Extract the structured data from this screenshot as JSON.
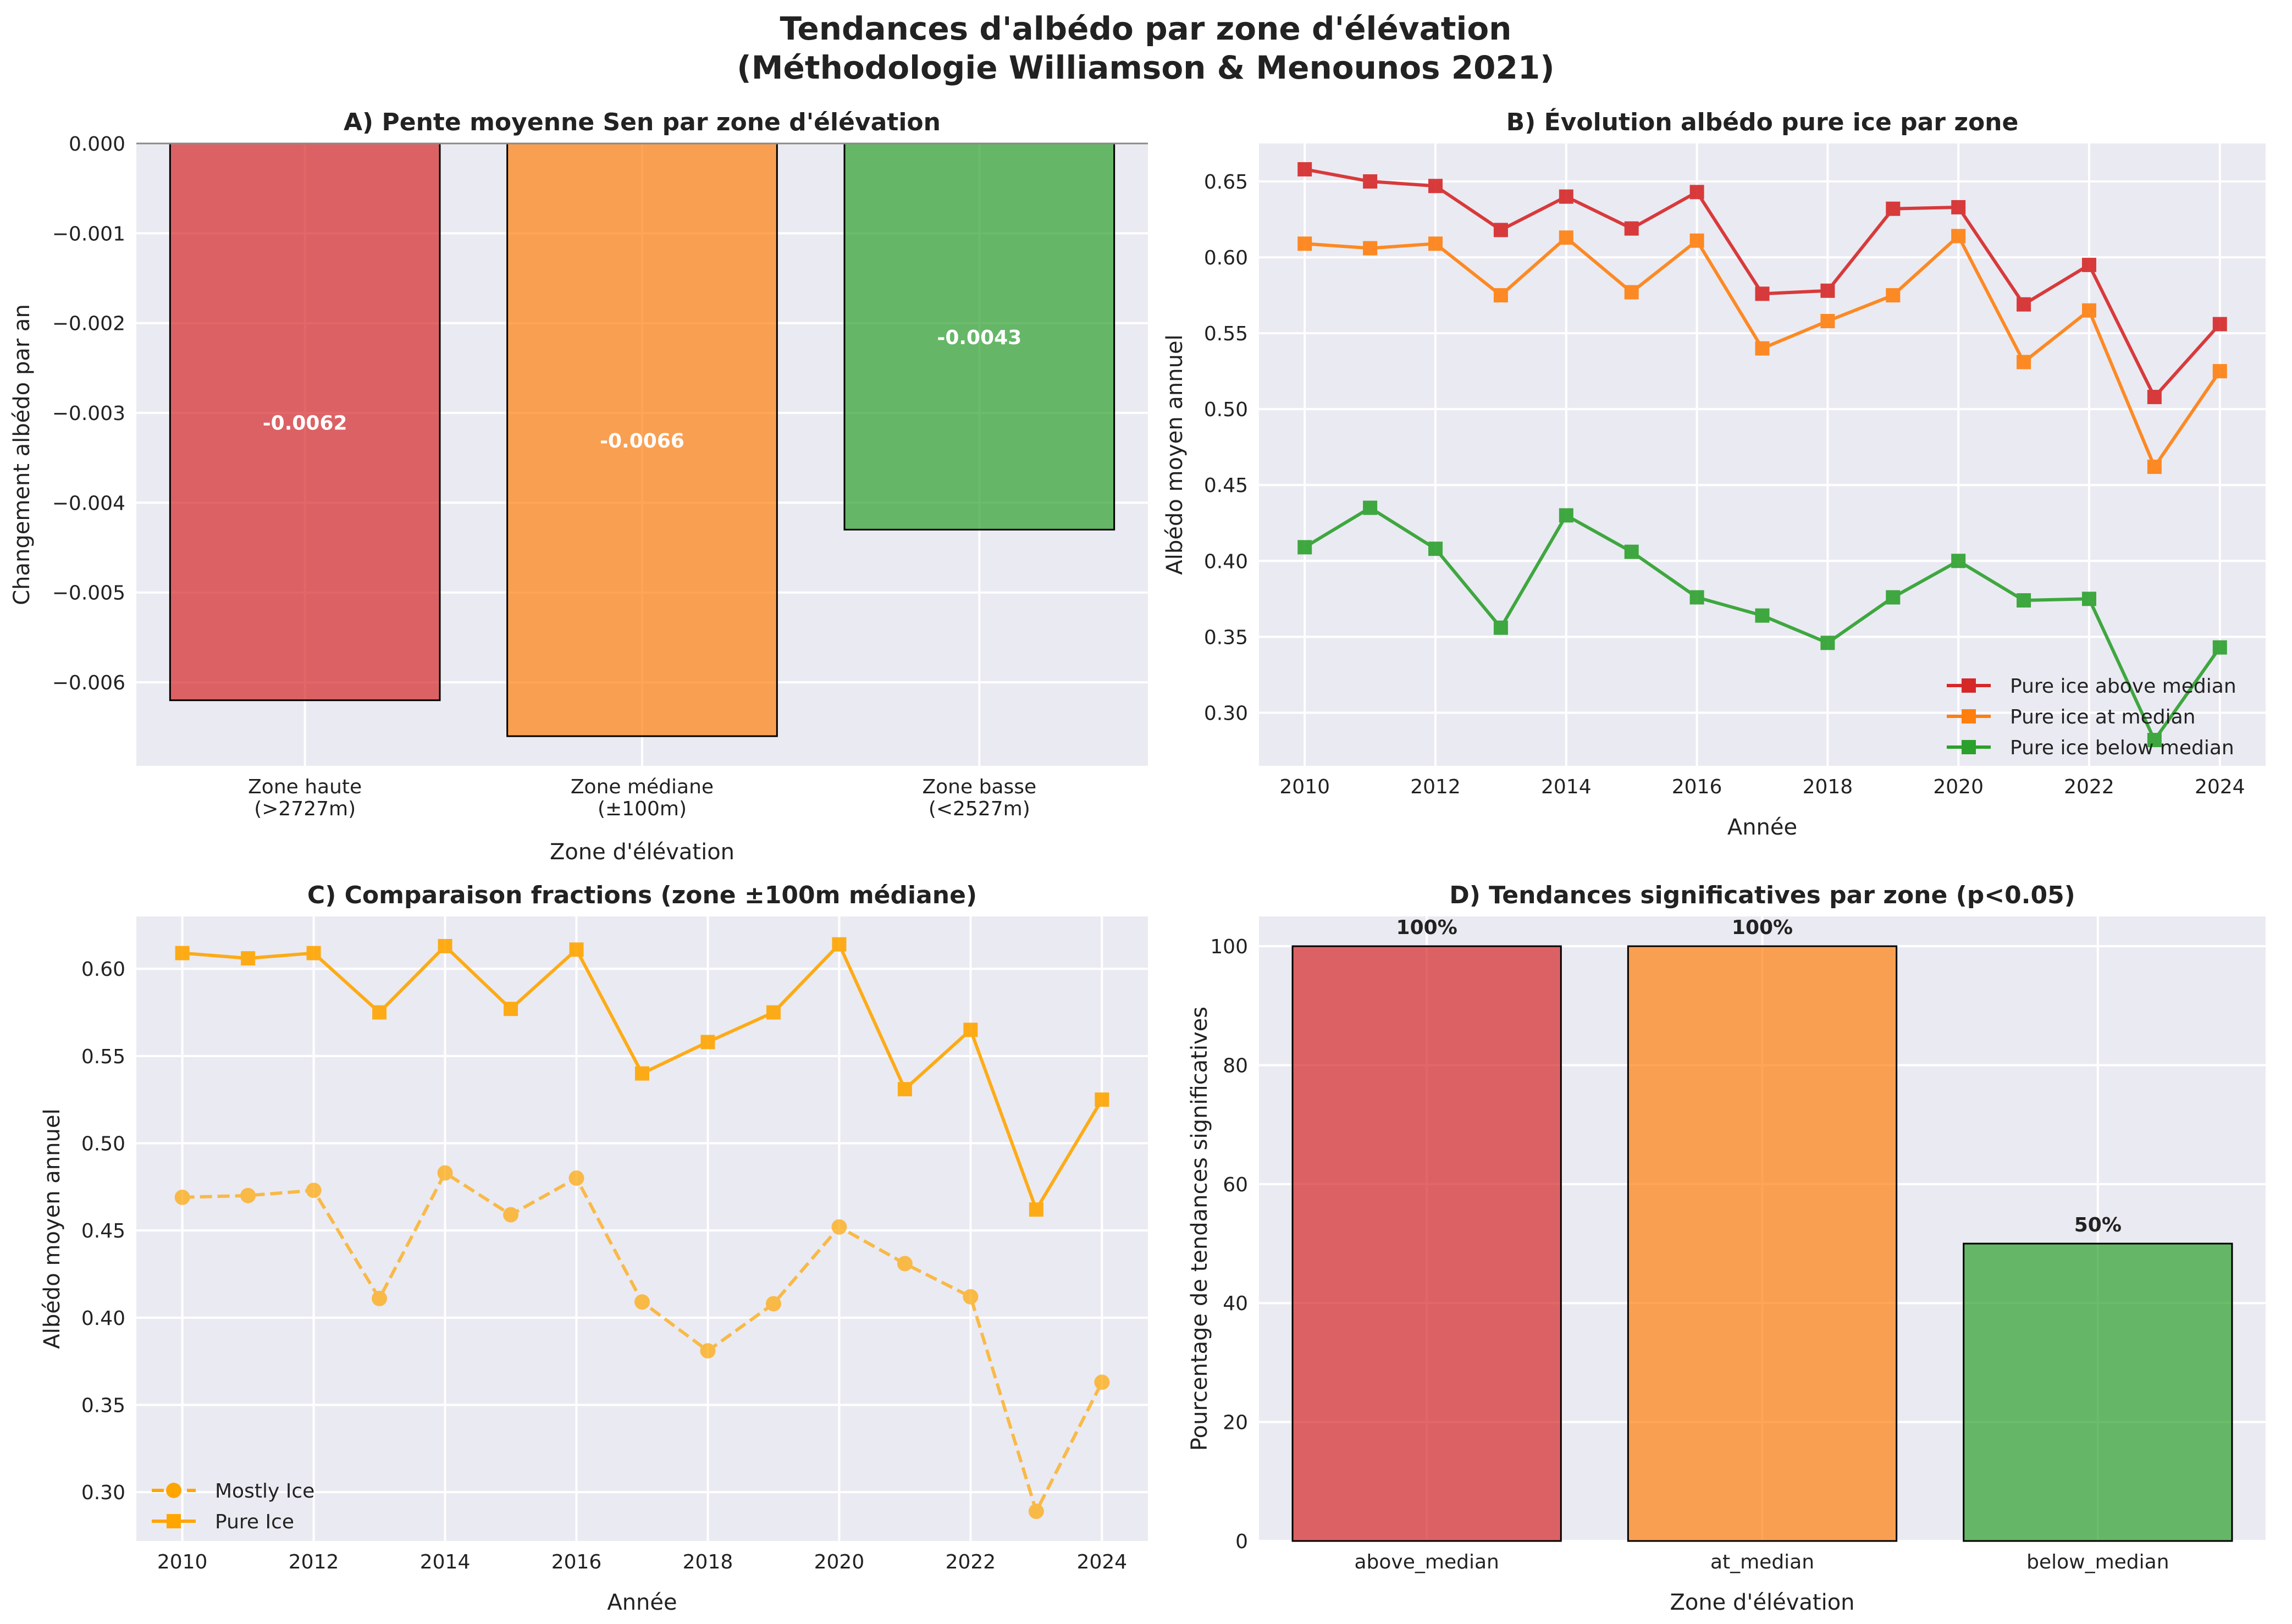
{
  "suptitle": [
    "Tendances d'albédo par zone d'élévation",
    "(Méthodologie Williamson & Menounos 2021)"
  ],
  "colors": {
    "red": "#d62728",
    "orange": "#ff7f0e",
    "green": "#2ca02c",
    "gold": "#ffa500",
    "axes_bg": "#eaeaf2",
    "grid": "#ffffff",
    "bar_edge": "#000000"
  },
  "chart_data": [
    {
      "id": "A",
      "type": "bar",
      "title": "A) Pente moyenne Sen par zone d'élévation",
      "xlabel": "Zone d'élévation",
      "ylabel": "Changement albédo par an",
      "categories": [
        [
          "Zone haute",
          "(>2727m)"
        ],
        [
          "Zone médiane",
          "(±100m)"
        ],
        [
          "Zone basse",
          "(<2527m)"
        ]
      ],
      "values": [
        -0.0062,
        -0.0066,
        -0.0043
      ],
      "data_labels": [
        "-0.0062",
        "-0.0066",
        "-0.0043"
      ],
      "bar_colors": [
        "red",
        "orange",
        "green"
      ],
      "ylim": [
        -0.00693,
        0
      ],
      "yticks": [
        0,
        -0.001,
        -0.002,
        -0.003,
        -0.004,
        -0.005,
        -0.006
      ],
      "ytick_labels": [
        "0.000",
        "−0.001",
        "−0.002",
        "−0.003",
        "−0.004",
        "−0.005",
        "−0.006"
      ],
      "grid": true
    },
    {
      "id": "B",
      "type": "line",
      "title": "B) Évolution albédo pure ice par zone",
      "xlabel": "Année",
      "ylabel": "Albédo moyen annuel",
      "x": [
        2010,
        2011,
        2012,
        2013,
        2014,
        2015,
        2016,
        2017,
        2018,
        2019,
        2020,
        2021,
        2022,
        2023,
        2024
      ],
      "series": [
        {
          "name": "Pure ice above median",
          "color": "red",
          "marker": "square",
          "dash": "solid",
          "values": [
            0.658,
            0.65,
            0.647,
            0.618,
            0.64,
            0.619,
            0.643,
            0.576,
            0.578,
            0.632,
            0.633,
            0.569,
            0.595,
            0.508,
            0.556
          ]
        },
        {
          "name": "Pure ice at median",
          "color": "orange",
          "marker": "square",
          "dash": "solid",
          "values": [
            0.609,
            0.606,
            0.609,
            0.575,
            0.613,
            0.577,
            0.611,
            0.54,
            0.558,
            0.575,
            0.614,
            0.531,
            0.565,
            0.462,
            0.525
          ]
        },
        {
          "name": "Pure ice below median",
          "color": "green",
          "marker": "square",
          "dash": "solid",
          "values": [
            0.409,
            0.435,
            0.408,
            0.356,
            0.43,
            0.406,
            0.376,
            0.364,
            0.346,
            0.376,
            0.4,
            0.374,
            0.375,
            0.282,
            0.343
          ]
        }
      ],
      "xlim": [
        2009.3,
        2024.7
      ],
      "ylim": [
        0.265,
        0.675
      ],
      "xticks": [
        2010,
        2012,
        2014,
        2016,
        2018,
        2020,
        2022,
        2024
      ],
      "yticks": [
        0.3,
        0.35,
        0.4,
        0.45,
        0.5,
        0.55,
        0.6,
        0.65
      ],
      "ytick_labels": [
        "0.30",
        "0.35",
        "0.40",
        "0.45",
        "0.50",
        "0.55",
        "0.60",
        "0.65"
      ],
      "legend": "lower-right",
      "grid": true
    },
    {
      "id": "C",
      "type": "line",
      "title": "C) Comparaison fractions (zone ±100m médiane)",
      "xlabel": "Année",
      "ylabel": "Albédo moyen annuel",
      "x": [
        2010,
        2011,
        2012,
        2013,
        2014,
        2015,
        2016,
        2017,
        2018,
        2019,
        2020,
        2021,
        2022,
        2023,
        2024
      ],
      "series": [
        {
          "name": "Mostly Ice",
          "color": "gold",
          "marker": "circle",
          "dash": "dashed",
          "values": [
            0.469,
            0.47,
            0.473,
            0.411,
            0.483,
            0.459,
            0.48,
            0.409,
            0.381,
            0.408,
            0.452,
            0.431,
            0.412,
            0.289,
            0.363
          ]
        },
        {
          "name": "Pure Ice",
          "color": "gold",
          "marker": "square",
          "dash": "solid",
          "values": [
            0.609,
            0.606,
            0.609,
            0.575,
            0.613,
            0.577,
            0.611,
            0.54,
            0.558,
            0.575,
            0.614,
            0.531,
            0.565,
            0.462,
            0.525
          ]
        }
      ],
      "xlim": [
        2009.3,
        2024.7
      ],
      "ylim": [
        0.272,
        0.63
      ],
      "xticks": [
        2010,
        2012,
        2014,
        2016,
        2018,
        2020,
        2022,
        2024
      ],
      "yticks": [
        0.3,
        0.35,
        0.4,
        0.45,
        0.5,
        0.55,
        0.6
      ],
      "ytick_labels": [
        "0.30",
        "0.35",
        "0.40",
        "0.45",
        "0.50",
        "0.55",
        "0.60"
      ],
      "legend": "lower-left",
      "grid": true
    },
    {
      "id": "D",
      "type": "bar",
      "title": "D) Tendances significatives par zone (p<0.05)",
      "xlabel": "Zone d'élévation",
      "ylabel": "Pourcentage de tendances significatives",
      "categories": [
        [
          "above_median"
        ],
        [
          "at_median"
        ],
        [
          "below_median"
        ]
      ],
      "values": [
        100,
        100,
        50
      ],
      "data_labels": [
        "100%",
        "100%",
        "50%"
      ],
      "bar_colors": [
        "red",
        "orange",
        "green"
      ],
      "ylim": [
        0,
        105
      ],
      "yticks": [
        0,
        20,
        40,
        60,
        80,
        100
      ],
      "ytick_labels": [
        "0",
        "20",
        "40",
        "60",
        "80",
        "100"
      ],
      "grid": true
    }
  ]
}
